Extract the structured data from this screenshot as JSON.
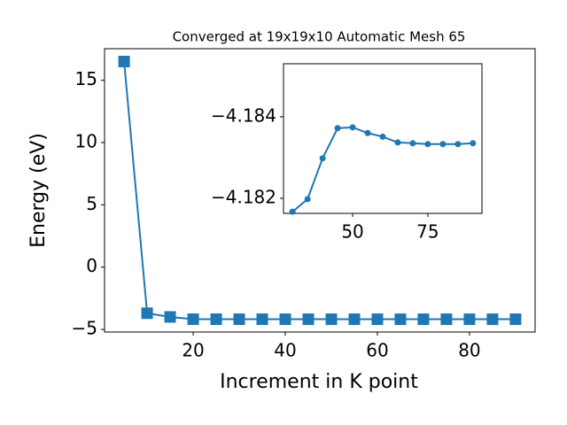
{
  "chart_data": [
    {
      "type": "line",
      "title": "Converged at 19x19x10 Automatic Mesh 65",
      "x_label": "Increment in K point",
      "y_label": "Energy (eV)",
      "x": [
        5,
        10,
        15,
        20,
        25,
        30,
        35,
        40,
        45,
        50,
        55,
        60,
        65,
        70,
        75,
        80,
        85,
        90
      ],
      "series": [
        {
          "color": "#1f77b4",
          "marker": "square",
          "values": [
            16.5,
            -3.7,
            -4.0,
            -4.18,
            -4.18,
            -4.18167,
            -4.18198,
            -4.18298,
            -4.18372,
            -4.18374,
            -4.1836,
            -4.18351,
            -4.18337,
            -4.18335,
            -4.18333,
            -4.18333,
            -4.18333,
            -4.18335
          ]
        }
      ],
      "xlim": [
        0.75,
        94.25
      ],
      "ylim": [
        -5.21,
        17.53
      ],
      "xticks": [
        20,
        40,
        60,
        80
      ],
      "yticks": [
        {
          "value": -5,
          "label": "−5"
        },
        0,
        5,
        10,
        15
      ]
    },
    {
      "type": "line",
      "x": [
        30,
        35,
        40,
        45,
        50,
        55,
        60,
        65,
        70,
        75,
        80,
        85,
        90
      ],
      "series": [
        {
          "color": "#1f77b4",
          "marker": "circle",
          "values": [
            -4.18167,
            -4.18198,
            -4.18298,
            -4.18372,
            -4.18374,
            -4.1836,
            -4.18351,
            -4.18337,
            -4.18335,
            -4.18333,
            -4.18333,
            -4.18333,
            -4.18335
          ]
        }
      ],
      "xlim": [
        27,
        93
      ],
      "ylim": [
        -4.18163,
        -4.1853
      ],
      "xticks": [
        50,
        75
      ],
      "yticks": [
        {
          "value": -4.184,
          "label": "−4.184"
        },
        {
          "value": -4.182,
          "label": "−4.182"
        }
      ]
    }
  ]
}
